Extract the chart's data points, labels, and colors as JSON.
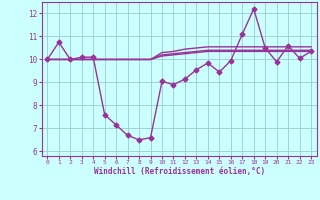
{
  "x": [
    0,
    1,
    2,
    3,
    4,
    5,
    6,
    7,
    8,
    9,
    10,
    11,
    12,
    13,
    14,
    15,
    16,
    17,
    18,
    19,
    20,
    21,
    22,
    23
  ],
  "main_line": [
    10.0,
    10.75,
    10.0,
    10.1,
    10.1,
    7.6,
    7.15,
    6.7,
    6.5,
    6.6,
    9.05,
    8.9,
    9.15,
    9.55,
    9.85,
    9.45,
    9.95,
    11.1,
    12.2,
    10.5,
    9.9,
    10.6,
    10.05,
    10.35
  ],
  "flat_line1": [
    10.0,
    10.0,
    10.0,
    10.0,
    10.0,
    10.0,
    10.0,
    10.0,
    10.0,
    10.0,
    10.2,
    10.25,
    10.3,
    10.35,
    10.4,
    10.4,
    10.4,
    10.4,
    10.4,
    10.4,
    10.4,
    10.4,
    10.4,
    10.4
  ],
  "flat_line2": [
    10.0,
    10.0,
    10.0,
    10.0,
    10.0,
    10.0,
    10.0,
    10.0,
    10.0,
    10.0,
    10.3,
    10.35,
    10.45,
    10.5,
    10.55,
    10.55,
    10.55,
    10.55,
    10.55,
    10.55,
    10.55,
    10.55,
    10.55,
    10.55
  ],
  "flat_line3": [
    10.0,
    10.0,
    10.0,
    10.0,
    10.0,
    10.0,
    10.0,
    10.0,
    10.0,
    10.0,
    10.15,
    10.2,
    10.25,
    10.3,
    10.35,
    10.35,
    10.35,
    10.35,
    10.35,
    10.35,
    10.35,
    10.35,
    10.35,
    10.35
  ],
  "ylim": [
    5.8,
    12.5
  ],
  "yticks": [
    6,
    7,
    8,
    9,
    10,
    11,
    12
  ],
  "xtick_labels": [
    "0",
    "1",
    "2",
    "3",
    "4",
    "5",
    "6",
    "7",
    "8",
    "9",
    "10",
    "11",
    "12",
    "13",
    "14",
    "15",
    "16",
    "17",
    "18",
    "19",
    "20",
    "21",
    "22",
    "23"
  ],
  "xlabel": "Windchill (Refroidissement éolien,°C)",
  "line_color": "#993399",
  "bg_color": "#ccffff",
  "grid_color": "#99cccc",
  "marker": "D",
  "marker_size": 2.5,
  "line_width": 1.0
}
